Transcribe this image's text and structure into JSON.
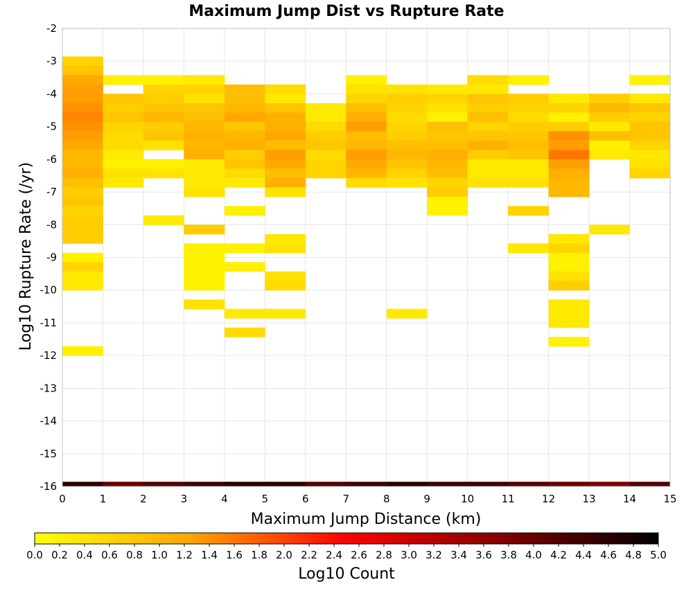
{
  "chart_data": {
    "type": "heatmap",
    "title": "Maximum Jump Dist vs Rupture Rate",
    "xlabel": "Maximum Jump Distance (km)",
    "ylabel": "Log10 Rupture Rate (/yr)",
    "xlim": [
      0,
      15
    ],
    "ylim": [
      -16,
      -2
    ],
    "x_ticks": [
      "0",
      "1",
      "2",
      "3",
      "4",
      "5",
      "6",
      "7",
      "8",
      "9",
      "10",
      "11",
      "12",
      "13",
      "14",
      "15"
    ],
    "y_ticks": [
      "-2",
      "-3",
      "-4",
      "-5",
      "-6",
      "-7",
      "-8",
      "-9",
      "-10",
      "-11",
      "-12",
      "-13",
      "-14",
      "-15",
      "-16"
    ],
    "x_bin_width": 1,
    "y_bin_height": 0.286,
    "grid": true,
    "colorbar": {
      "label": "Log10 Count",
      "range": [
        0.0,
        5.0
      ],
      "ticks": [
        "0.0",
        "0.2",
        "0.4",
        "0.6",
        "0.8",
        "1.0",
        "1.2",
        "1.4",
        "1.6",
        "1.8",
        "2.0",
        "2.2",
        "2.4",
        "2.6",
        "2.8",
        "3.0",
        "3.2",
        "3.4",
        "3.6",
        "3.8",
        "4.0",
        "4.2",
        "4.4",
        "4.6",
        "4.8",
        "5.0"
      ],
      "colormap": [
        "#ffff00",
        "#ffa500",
        "#ff0000",
        "#800000",
        "#000000"
      ]
    },
    "cells": [
      {
        "x": 0,
        "y": -3.0,
        "v": 0.6
      },
      {
        "x": 0,
        "y": -3.286,
        "v": 0.8
      },
      {
        "x": 0,
        "y": -3.571,
        "v": 1.2
      },
      {
        "x": 0,
        "y": -3.857,
        "v": 1.3
      },
      {
        "x": 0,
        "y": -4.143,
        "v": 1.3
      },
      {
        "x": 0,
        "y": -4.429,
        "v": 1.4
      },
      {
        "x": 0,
        "y": -4.714,
        "v": 1.5
      },
      {
        "x": 0,
        "y": -5.0,
        "v": 1.4
      },
      {
        "x": 0,
        "y": -5.286,
        "v": 1.3
      },
      {
        "x": 0,
        "y": -5.571,
        "v": 1.2
      },
      {
        "x": 0,
        "y": -5.857,
        "v": 1.0
      },
      {
        "x": 0,
        "y": -6.143,
        "v": 1.0
      },
      {
        "x": 0,
        "y": -6.429,
        "v": 1.1
      },
      {
        "x": 0,
        "y": -6.714,
        "v": 0.9
      },
      {
        "x": 0,
        "y": -7.0,
        "v": 0.7
      },
      {
        "x": 0,
        "y": -7.286,
        "v": 0.8
      },
      {
        "x": 0,
        "y": -7.571,
        "v": 0.6
      },
      {
        "x": 0,
        "y": -7.857,
        "v": 0.7
      },
      {
        "x": 0,
        "y": -8.143,
        "v": 0.7
      },
      {
        "x": 0,
        "y": -8.429,
        "v": 0.7
      },
      {
        "x": 0,
        "y": -9.0,
        "v": 0.2
      },
      {
        "x": 0,
        "y": -9.286,
        "v": 0.6
      },
      {
        "x": 0,
        "y": -9.571,
        "v": 0.3
      },
      {
        "x": 0,
        "y": -9.857,
        "v": 0.3
      },
      {
        "x": 0,
        "y": -11.857,
        "v": 0.2
      },
      {
        "x": 0,
        "y": -16.0,
        "v": 4.6
      },
      {
        "x": 1,
        "y": -3.571,
        "v": 0.2
      },
      {
        "x": 1,
        "y": -4.143,
        "v": 0.8
      },
      {
        "x": 1,
        "y": -4.429,
        "v": 0.7
      },
      {
        "x": 1,
        "y": -4.714,
        "v": 0.8
      },
      {
        "x": 1,
        "y": -5.0,
        "v": 0.6
      },
      {
        "x": 1,
        "y": -5.286,
        "v": 0.5
      },
      {
        "x": 1,
        "y": -5.571,
        "v": 0.5
      },
      {
        "x": 1,
        "y": -5.857,
        "v": 0.3
      },
      {
        "x": 1,
        "y": -6.143,
        "v": 0.2
      },
      {
        "x": 1,
        "y": -6.429,
        "v": 0.4
      },
      {
        "x": 1,
        "y": -6.714,
        "v": 0.3
      },
      {
        "x": 1,
        "y": -16.0,
        "v": 4.0
      },
      {
        "x": 2,
        "y": -3.571,
        "v": 0.2
      },
      {
        "x": 2,
        "y": -3.857,
        "v": 0.6
      },
      {
        "x": 2,
        "y": -4.143,
        "v": 0.7
      },
      {
        "x": 2,
        "y": -4.429,
        "v": 0.8
      },
      {
        "x": 2,
        "y": -4.714,
        "v": 1.0
      },
      {
        "x": 2,
        "y": -5.0,
        "v": 0.7
      },
      {
        "x": 2,
        "y": -5.286,
        "v": 0.8
      },
      {
        "x": 2,
        "y": -5.571,
        "v": 0.4
      },
      {
        "x": 2,
        "y": -6.143,
        "v": 0.2
      },
      {
        "x": 2,
        "y": -6.429,
        "v": 0.4
      },
      {
        "x": 2,
        "y": -7.857,
        "v": 0.3
      },
      {
        "x": 2,
        "y": -16.0,
        "v": 4.2
      },
      {
        "x": 3,
        "y": -3.571,
        "v": 0.3
      },
      {
        "x": 3,
        "y": -3.857,
        "v": 0.6
      },
      {
        "x": 3,
        "y": -4.143,
        "v": 0.4
      },
      {
        "x": 3,
        "y": -4.429,
        "v": 0.8
      },
      {
        "x": 3,
        "y": -4.714,
        "v": 0.9
      },
      {
        "x": 3,
        "y": -5.0,
        "v": 1.0
      },
      {
        "x": 3,
        "y": -5.286,
        "v": 1.1
      },
      {
        "x": 3,
        "y": -5.571,
        "v": 1.0
      },
      {
        "x": 3,
        "y": -5.857,
        "v": 1.1
      },
      {
        "x": 3,
        "y": -6.143,
        "v": 0.3
      },
      {
        "x": 3,
        "y": -6.429,
        "v": 0.3
      },
      {
        "x": 3,
        "y": -6.714,
        "v": 0.3
      },
      {
        "x": 3,
        "y": -7.0,
        "v": 0.4
      },
      {
        "x": 3,
        "y": -8.143,
        "v": 0.7
      },
      {
        "x": 3,
        "y": -8.714,
        "v": 0.2
      },
      {
        "x": 3,
        "y": -9.0,
        "v": 0.2
      },
      {
        "x": 3,
        "y": -9.286,
        "v": 0.2
      },
      {
        "x": 3,
        "y": -9.571,
        "v": 0.2
      },
      {
        "x": 3,
        "y": -9.857,
        "v": 0.2
      },
      {
        "x": 3,
        "y": -10.429,
        "v": 0.4
      },
      {
        "x": 3,
        "y": -16.0,
        "v": 4.4
      },
      {
        "x": 4,
        "y": -3.857,
        "v": 0.9
      },
      {
        "x": 4,
        "y": -4.143,
        "v": 0.9
      },
      {
        "x": 4,
        "y": -4.429,
        "v": 1.0
      },
      {
        "x": 4,
        "y": -4.714,
        "v": 1.2
      },
      {
        "x": 4,
        "y": -5.0,
        "v": 0.8
      },
      {
        "x": 4,
        "y": -5.286,
        "v": 1.0
      },
      {
        "x": 4,
        "y": -5.571,
        "v": 1.1
      },
      {
        "x": 4,
        "y": -5.857,
        "v": 0.7
      },
      {
        "x": 4,
        "y": -6.143,
        "v": 0.8
      },
      {
        "x": 4,
        "y": -6.429,
        "v": 0.5
      },
      {
        "x": 4,
        "y": -6.714,
        "v": 0.3
      },
      {
        "x": 4,
        "y": -7.571,
        "v": 0.2
      },
      {
        "x": 4,
        "y": -8.714,
        "v": 0.2
      },
      {
        "x": 4,
        "y": -9.286,
        "v": 0.2
      },
      {
        "x": 4,
        "y": -10.714,
        "v": 0.3
      },
      {
        "x": 4,
        "y": -11.286,
        "v": 0.5
      },
      {
        "x": 4,
        "y": -16.0,
        "v": 4.6
      },
      {
        "x": 5,
        "y": -3.857,
        "v": 0.5
      },
      {
        "x": 5,
        "y": -4.143,
        "v": 0.3
      },
      {
        "x": 5,
        "y": -4.429,
        "v": 0.8
      },
      {
        "x": 5,
        "y": -4.714,
        "v": 1.1
      },
      {
        "x": 5,
        "y": -5.0,
        "v": 1.1
      },
      {
        "x": 5,
        "y": -5.286,
        "v": 1.2
      },
      {
        "x": 5,
        "y": -5.571,
        "v": 0.9
      },
      {
        "x": 5,
        "y": -5.857,
        "v": 1.3
      },
      {
        "x": 5,
        "y": -6.143,
        "v": 1.2
      },
      {
        "x": 5,
        "y": -6.429,
        "v": 0.9
      },
      {
        "x": 5,
        "y": -6.714,
        "v": 1.1
      },
      {
        "x": 5,
        "y": -7.0,
        "v": 0.4
      },
      {
        "x": 5,
        "y": -8.429,
        "v": 0.3
      },
      {
        "x": 5,
        "y": -8.714,
        "v": 0.4
      },
      {
        "x": 5,
        "y": -9.571,
        "v": 0.4
      },
      {
        "x": 5,
        "y": -9.857,
        "v": 0.5
      },
      {
        "x": 5,
        "y": -10.714,
        "v": 0.3
      },
      {
        "x": 5,
        "y": -16.0,
        "v": 4.6
      },
      {
        "x": 6,
        "y": -4.429,
        "v": 0.3
      },
      {
        "x": 6,
        "y": -4.714,
        "v": 0.3
      },
      {
        "x": 6,
        "y": -5.0,
        "v": 0.5
      },
      {
        "x": 6,
        "y": -5.286,
        "v": 0.7
      },
      {
        "x": 6,
        "y": -5.571,
        "v": 0.8
      },
      {
        "x": 6,
        "y": -5.857,
        "v": 0.5
      },
      {
        "x": 6,
        "y": -6.143,
        "v": 0.6
      },
      {
        "x": 6,
        "y": -6.429,
        "v": 0.6
      },
      {
        "x": 6,
        "y": -16.0,
        "v": 4.2
      },
      {
        "x": 7,
        "y": -3.571,
        "v": 0.2
      },
      {
        "x": 7,
        "y": -3.857,
        "v": 0.4
      },
      {
        "x": 7,
        "y": -4.143,
        "v": 0.6
      },
      {
        "x": 7,
        "y": -4.429,
        "v": 0.9
      },
      {
        "x": 7,
        "y": -4.714,
        "v": 1.1
      },
      {
        "x": 7,
        "y": -5.0,
        "v": 1.3
      },
      {
        "x": 7,
        "y": -5.286,
        "v": 0.9
      },
      {
        "x": 7,
        "y": -5.571,
        "v": 1.0
      },
      {
        "x": 7,
        "y": -5.857,
        "v": 1.3
      },
      {
        "x": 7,
        "y": -6.143,
        "v": 1.2
      },
      {
        "x": 7,
        "y": -6.429,
        "v": 1.0
      },
      {
        "x": 7,
        "y": -6.714,
        "v": 0.5
      },
      {
        "x": 7,
        "y": -16.0,
        "v": 4.4
      },
      {
        "x": 8,
        "y": -3.857,
        "v": 0.4
      },
      {
        "x": 8,
        "y": -4.143,
        "v": 0.7
      },
      {
        "x": 8,
        "y": -4.429,
        "v": 0.6
      },
      {
        "x": 8,
        "y": -4.714,
        "v": 0.5
      },
      {
        "x": 8,
        "y": -5.0,
        "v": 0.6
      },
      {
        "x": 8,
        "y": -5.286,
        "v": 0.7
      },
      {
        "x": 8,
        "y": -5.571,
        "v": 0.9
      },
      {
        "x": 8,
        "y": -5.857,
        "v": 1.0
      },
      {
        "x": 8,
        "y": -6.143,
        "v": 0.8
      },
      {
        "x": 8,
        "y": -6.429,
        "v": 0.6
      },
      {
        "x": 8,
        "y": -6.714,
        "v": 0.4
      },
      {
        "x": 8,
        "y": -10.714,
        "v": 0.3
      },
      {
        "x": 8,
        "y": -16.0,
        "v": 4.6
      },
      {
        "x": 9,
        "y": -3.857,
        "v": 0.3
      },
      {
        "x": 9,
        "y": -4.143,
        "v": 0.6
      },
      {
        "x": 9,
        "y": -4.429,
        "v": 0.4
      },
      {
        "x": 9,
        "y": -4.714,
        "v": 0.2
      },
      {
        "x": 9,
        "y": -5.0,
        "v": 0.9
      },
      {
        "x": 9,
        "y": -5.286,
        "v": 0.8
      },
      {
        "x": 9,
        "y": -5.571,
        "v": 0.9
      },
      {
        "x": 9,
        "y": -5.857,
        "v": 1.1
      },
      {
        "x": 9,
        "y": -6.143,
        "v": 1.0
      },
      {
        "x": 9,
        "y": -6.429,
        "v": 0.9
      },
      {
        "x": 9,
        "y": -6.714,
        "v": 0.6
      },
      {
        "x": 9,
        "y": -7.0,
        "v": 0.7
      },
      {
        "x": 9,
        "y": -7.286,
        "v": 0.2
      },
      {
        "x": 9,
        "y": -7.571,
        "v": 0.2
      },
      {
        "x": 9,
        "y": -16.0,
        "v": 4.4
      },
      {
        "x": 10,
        "y": -3.571,
        "v": 0.5
      },
      {
        "x": 10,
        "y": -3.857,
        "v": 0.3
      },
      {
        "x": 10,
        "y": -4.143,
        "v": 0.8
      },
      {
        "x": 10,
        "y": -4.429,
        "v": 0.7
      },
      {
        "x": 10,
        "y": -4.714,
        "v": 0.9
      },
      {
        "x": 10,
        "y": -5.0,
        "v": 0.6
      },
      {
        "x": 10,
        "y": -5.286,
        "v": 0.8
      },
      {
        "x": 10,
        "y": -5.571,
        "v": 1.1
      },
      {
        "x": 10,
        "y": -5.857,
        "v": 0.7
      },
      {
        "x": 10,
        "y": -6.143,
        "v": 0.3
      },
      {
        "x": 10,
        "y": -6.429,
        "v": 0.3
      },
      {
        "x": 10,
        "y": -6.714,
        "v": 0.4
      },
      {
        "x": 10,
        "y": -16.0,
        "v": 4.4
      },
      {
        "x": 11,
        "y": -3.571,
        "v": 0.2
      },
      {
        "x": 11,
        "y": -4.143,
        "v": 0.7
      },
      {
        "x": 11,
        "y": -4.429,
        "v": 0.6
      },
      {
        "x": 11,
        "y": -4.714,
        "v": 0.5
      },
      {
        "x": 11,
        "y": -5.0,
        "v": 0.7
      },
      {
        "x": 11,
        "y": -5.286,
        "v": 0.8
      },
      {
        "x": 11,
        "y": -5.571,
        "v": 0.9
      },
      {
        "x": 11,
        "y": -5.857,
        "v": 0.8
      },
      {
        "x": 11,
        "y": -6.143,
        "v": 0.3
      },
      {
        "x": 11,
        "y": -6.429,
        "v": 0.3
      },
      {
        "x": 11,
        "y": -6.714,
        "v": 0.4
      },
      {
        "x": 11,
        "y": -7.571,
        "v": 0.6
      },
      {
        "x": 11,
        "y": -8.714,
        "v": 0.3
      },
      {
        "x": 11,
        "y": -16.0,
        "v": 4.2
      },
      {
        "x": 12,
        "y": -4.143,
        "v": 0.3
      },
      {
        "x": 12,
        "y": -4.429,
        "v": 0.6
      },
      {
        "x": 12,
        "y": -4.714,
        "v": 0.2
      },
      {
        "x": 12,
        "y": -5.0,
        "v": 0.7
      },
      {
        "x": 12,
        "y": -5.286,
        "v": 1.4
      },
      {
        "x": 12,
        "y": -5.571,
        "v": 1.3
      },
      {
        "x": 12,
        "y": -5.857,
        "v": 1.6
      },
      {
        "x": 12,
        "y": -6.143,
        "v": 1.3
      },
      {
        "x": 12,
        "y": -6.429,
        "v": 1.1
      },
      {
        "x": 12,
        "y": -6.714,
        "v": 1.0
      },
      {
        "x": 12,
        "y": -7.0,
        "v": 1.0
      },
      {
        "x": 12,
        "y": -8.429,
        "v": 0.3
      },
      {
        "x": 12,
        "y": -8.714,
        "v": 0.6
      },
      {
        "x": 12,
        "y": -9.0,
        "v": 0.2
      },
      {
        "x": 12,
        "y": -9.286,
        "v": 0.2
      },
      {
        "x": 12,
        "y": -9.571,
        "v": 0.4
      },
      {
        "x": 12,
        "y": -9.857,
        "v": 0.7
      },
      {
        "x": 12,
        "y": -10.429,
        "v": 0.3
      },
      {
        "x": 12,
        "y": -10.714,
        "v": 0.3
      },
      {
        "x": 12,
        "y": -11.0,
        "v": 0.3
      },
      {
        "x": 12,
        "y": -11.571,
        "v": 0.2
      },
      {
        "x": 12,
        "y": -16.0,
        "v": 4.0
      },
      {
        "x": 13,
        "y": -4.143,
        "v": 0.7
      },
      {
        "x": 13,
        "y": -4.429,
        "v": 1.0
      },
      {
        "x": 13,
        "y": -4.714,
        "v": 0.7
      },
      {
        "x": 13,
        "y": -5.0,
        "v": 0.3
      },
      {
        "x": 13,
        "y": -5.286,
        "v": 0.9
      },
      {
        "x": 13,
        "y": -5.571,
        "v": 0.2
      },
      {
        "x": 13,
        "y": -5.857,
        "v": 0.3
      },
      {
        "x": 13,
        "y": -8.143,
        "v": 0.3
      },
      {
        "x": 13,
        "y": -16.0,
        "v": 3.8
      },
      {
        "x": 14,
        "y": -3.571,
        "v": 0.2
      },
      {
        "x": 14,
        "y": -4.143,
        "v": 0.3
      },
      {
        "x": 14,
        "y": -4.429,
        "v": 0.8
      },
      {
        "x": 14,
        "y": -4.714,
        "v": 0.6
      },
      {
        "x": 14,
        "y": -5.0,
        "v": 0.8
      },
      {
        "x": 14,
        "y": -5.286,
        "v": 0.8
      },
      {
        "x": 14,
        "y": -5.571,
        "v": 0.6
      },
      {
        "x": 14,
        "y": -5.857,
        "v": 0.3
      },
      {
        "x": 14,
        "y": -6.143,
        "v": 0.4
      },
      {
        "x": 14,
        "y": -6.429,
        "v": 0.6
      },
      {
        "x": 14,
        "y": -16.0,
        "v": 4.2
      }
    ]
  }
}
